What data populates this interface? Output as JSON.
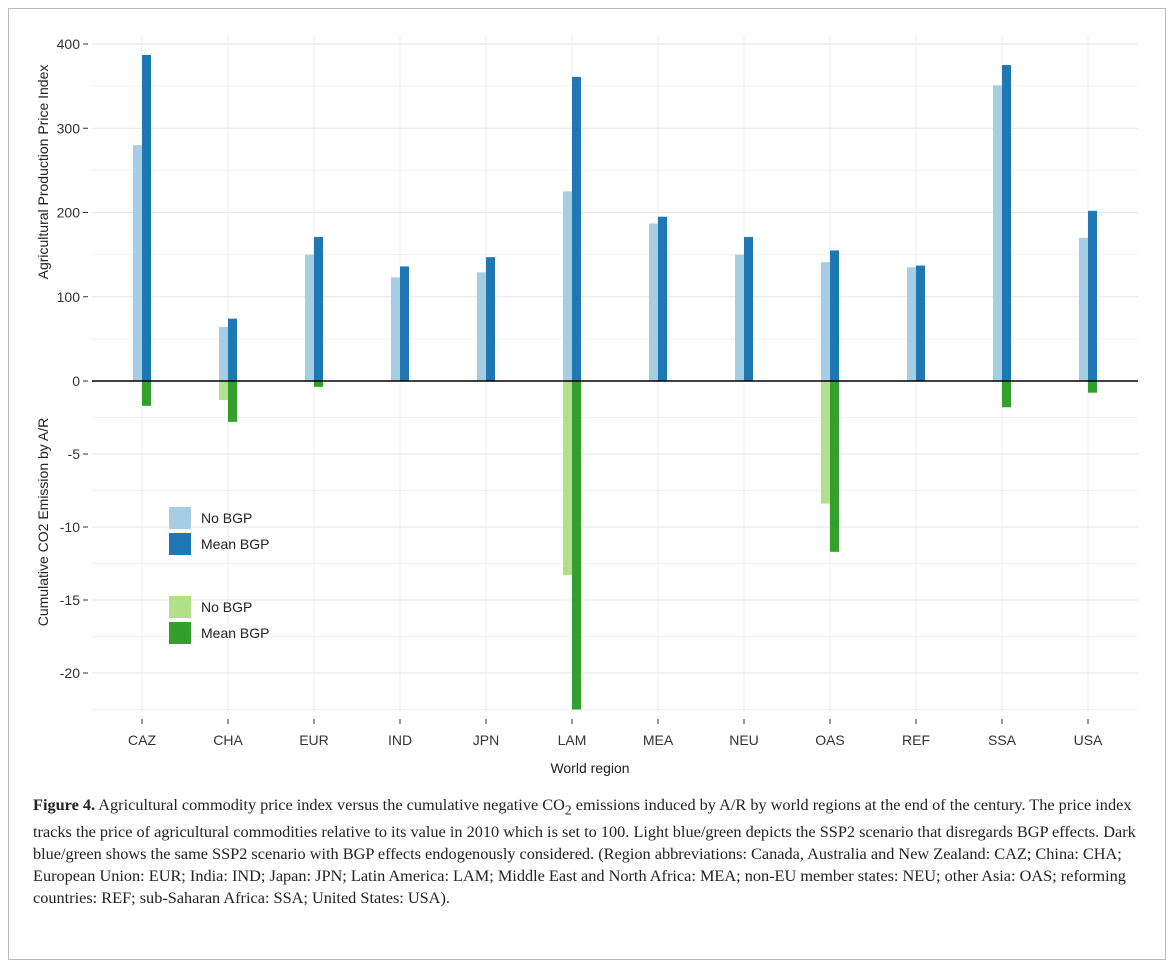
{
  "chart_data": {
    "type": "bar",
    "xlabel": "World region",
    "categories": [
      "CAZ",
      "CHA",
      "EUR",
      "IND",
      "JPN",
      "LAM",
      "MEA",
      "NEU",
      "OAS",
      "REF",
      "SSA",
      "USA"
    ],
    "panels": [
      {
        "ylabel": "Agricultural Production Price Index",
        "ylim": [
          0,
          400
        ],
        "yticks": [
          0,
          100,
          200,
          300,
          400
        ],
        "series": [
          {
            "name": "No BGP",
            "color": "#a6cee3",
            "values": [
              280,
              64,
              150,
              123,
              129,
              225,
              187,
              150,
              141,
              135,
              351,
              170
            ]
          },
          {
            "name": "Mean BGP",
            "color": "#1f78b4",
            "values": [
              387,
              74,
              171,
              136,
              147,
              361,
              195,
              171,
              155,
              137,
              375,
              202
            ]
          }
        ]
      },
      {
        "ylabel": "Cumulative CO2 Emission by A/R",
        "ylim": [
          -22.5,
          0
        ],
        "yticks": [
          -5,
          -10,
          -15,
          -20
        ],
        "series": [
          {
            "name": "No BGP",
            "color": "#b2df8a",
            "values": [
              0,
              -1.3,
              0,
              0,
              0,
              -13.3,
              0,
              0,
              -8.4,
              0,
              0,
              0
            ]
          },
          {
            "name": "Mean BGP",
            "color": "#33a02c",
            "values": [
              -1.7,
              -2.8,
              -0.4,
              0,
              0,
              -22.5,
              0,
              0,
              -11.7,
              0,
              -1.8,
              -0.8
            ]
          }
        ]
      }
    ],
    "grid": true,
    "legend_position": "bottom-left"
  },
  "caption": {
    "label": "Figure 4.",
    "text_before_sub": "Agricultural commodity price index versus the cumulative negative CO",
    "sub": "2",
    "text_after_sub": " emissions induced by A/R by world regions at the end of the century. The price index tracks the price of agricultural commodities relative to its value in 2010 which is set to 100. Light blue/green depicts the SSP2 scenario that disregards BGP effects. Dark blue/green shows the same SSP2 scenario with BGP effects endogenously considered. (Region abbreviations: Canada, Australia and New Zealand: CAZ; China: CHA; European Union: EUR; India: IND; Japan: JPN; Latin America: LAM; Middle East and North Africa: MEA; non-EU member states: NEU; other Asia: OAS; reforming countries: REF; sub-Saharan Africa: SSA; United States: USA)."
  }
}
